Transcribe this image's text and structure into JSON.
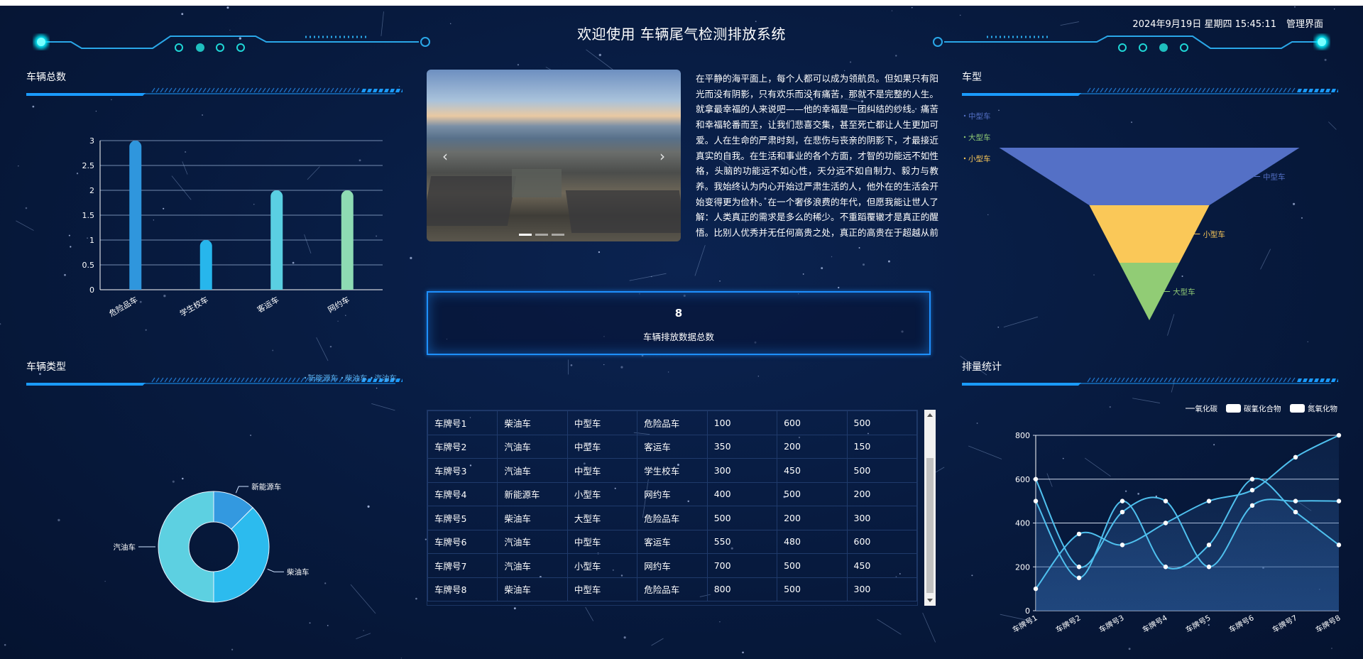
{
  "header": {
    "title": "欢迎使用 车辆尾气检测排放系统",
    "datetime": "2024年9月19日 星期四 15:45:11",
    "admin_link": "管理界面"
  },
  "colors": {
    "background": "#071a3e",
    "accent": "#1e90ff",
    "glow": "#00e5ff"
  },
  "panels": {
    "vehicle_total": {
      "title": "车辆总数"
    },
    "vehicle_kind": {
      "title": "车辆类型"
    },
    "vehicle_model": {
      "title": "车型"
    },
    "emission_stats": {
      "title": "排量统计"
    }
  },
  "essay": "在平静的海平面上，每个人都可以成为领航员。但如果只有阳光而没有阴影，只有欢乐而没有痛苦，那就不是完整的人生。就拿最幸福的人来说吧——他的幸福是一团纠结的纱线。痛苦和幸福轮番而至，让我们悲喜交集，甚至死亡都让人生更加可爱。人在生命的严肃时刻，在悲伤与丧亲的阴影下，才最接近真实的自我。在生活和事业的各个方面，才智的功能远不如性格，头脑的功能远不如心性，天分远不如自制力、毅力与教养。我始终认为内心开始过严肃生活的人，他外在的生活会开始变得更为俭朴。在一个奢侈浪费的年代，但愿我能让世人了解：人类真正的需求是多么的稀少。不重蹈覆辙才是真正的醒悟。比别人优秀并无任何高贵之处，真正的高贵在于超越从前的自己。",
  "carousel": {
    "prev_icon": "chevron-left-icon",
    "next_icon": "chevron-right-icon",
    "prev": "‹",
    "next": "›"
  },
  "total": {
    "value": "8",
    "label": "车辆排放数据总数"
  },
  "table": {
    "rows": [
      [
        "车牌号1",
        "柴油车",
        "中型车",
        "危险品车",
        "100",
        "600",
        "500"
      ],
      [
        "车牌号2",
        "汽油车",
        "中型车",
        "客运车",
        "350",
        "200",
        "150"
      ],
      [
        "车牌号3",
        "汽油车",
        "中型车",
        "学生校车",
        "300",
        "450",
        "500"
      ],
      [
        "车牌号4",
        "新能源车",
        "小型车",
        "网约车",
        "400",
        "500",
        "200"
      ],
      [
        "车牌号5",
        "柴油车",
        "大型车",
        "危险品车",
        "500",
        "200",
        "300"
      ],
      [
        "车牌号6",
        "汽油车",
        "中型车",
        "客运车",
        "550",
        "480",
        "600"
      ],
      [
        "车牌号7",
        "汽油车",
        "小型车",
        "网约车",
        "700",
        "500",
        "450"
      ],
      [
        "车牌号8",
        "柴油车",
        "中型车",
        "危险品车",
        "800",
        "500",
        "300"
      ]
    ]
  },
  "chart_data": [
    {
      "type": "bar",
      "title": "车辆总数",
      "categories": [
        "危险品车",
        "学生校车",
        "客运车",
        "网约车"
      ],
      "values": [
        3,
        1,
        2,
        2
      ],
      "ylim": [
        0,
        3
      ],
      "yticks": [
        "0",
        "0.5",
        "1",
        "1.5",
        "2",
        "2.5",
        "3"
      ],
      "grid": true,
      "colors": [
        "#2f96dd",
        "#27b6ec",
        "#5acfe2",
        "#8edbb3"
      ]
    },
    {
      "type": "pie",
      "title": "车辆类型",
      "donut": true,
      "legend": [
        "新能源车",
        "柴油车",
        "汽油车"
      ],
      "legend_position": "top-right",
      "slices": [
        {
          "name": "新能源车",
          "value": 1,
          "color": "#3399e0"
        },
        {
          "name": "柴油车",
          "value": 3,
          "color": "#2cbbee"
        },
        {
          "name": "汽油车",
          "value": 4,
          "color": "#5dd0e1"
        }
      ]
    },
    {
      "type": "funnel",
      "title": "车型",
      "legend": [
        "中型车",
        "大型车",
        "小型车"
      ],
      "legend_position": "top-left",
      "slices": [
        {
          "name": "中型车",
          "value": 5,
          "color": "#5470c6"
        },
        {
          "name": "小型车",
          "value": 2,
          "color": "#fac858"
        },
        {
          "name": "大型车",
          "value": 1,
          "color": "#91cc75"
        }
      ]
    },
    {
      "type": "line",
      "title": "排量统计",
      "smooth": true,
      "area": true,
      "categories": [
        "车牌号1",
        "车牌号2",
        "车牌号3",
        "车牌号4",
        "车牌号5",
        "车牌号6",
        "车牌号7",
        "车牌号8"
      ],
      "ylim": [
        0,
        800
      ],
      "yticks": [
        "0",
        "200",
        "400",
        "600",
        "800"
      ],
      "grid": true,
      "legend_position": "top-right",
      "series": [
        {
          "name": "一氧化碳",
          "values": [
            100,
            350,
            300,
            400,
            500,
            550,
            700,
            800
          ]
        },
        {
          "name": "碳氢化合物",
          "values": [
            600,
            200,
            450,
            500,
            200,
            480,
            500,
            500
          ]
        },
        {
          "name": "氮氧化物",
          "values": [
            500,
            150,
            500,
            200,
            300,
            600,
            450,
            300
          ]
        }
      ],
      "line_color": "#4fc0ee"
    }
  ]
}
